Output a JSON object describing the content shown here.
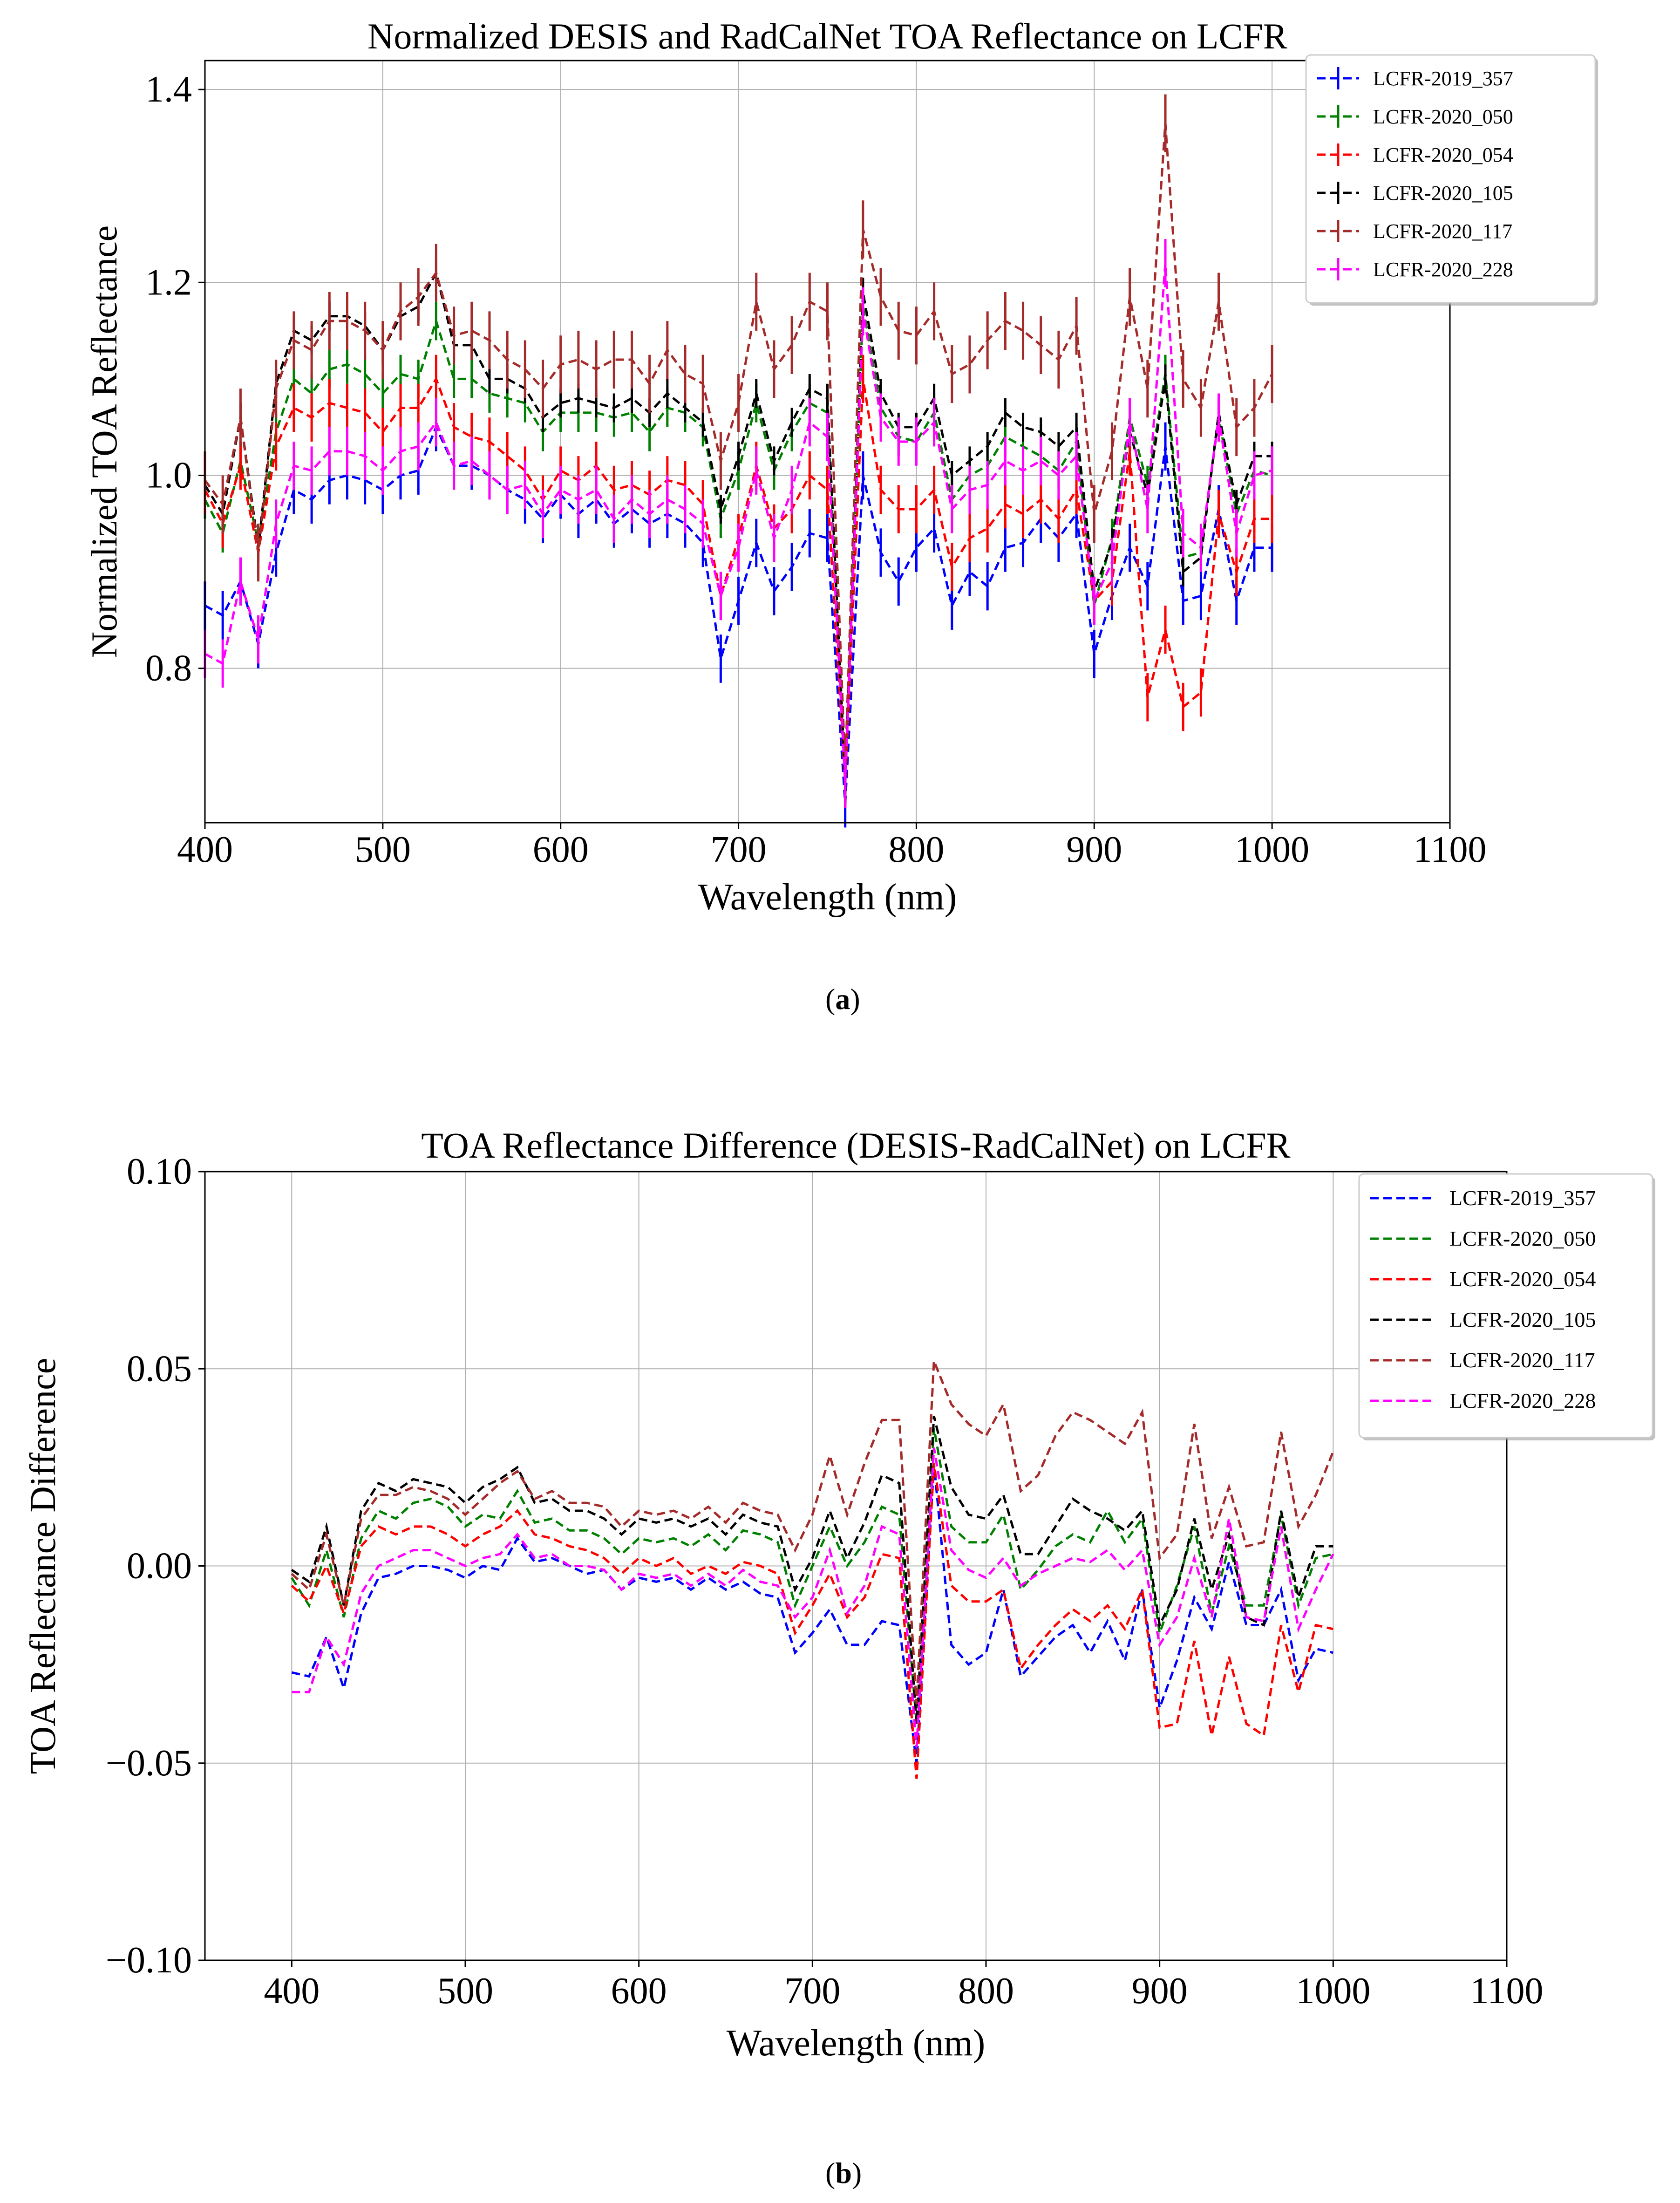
{
  "figure_labels": {
    "a": "a",
    "b": "b"
  },
  "chart_data": [
    {
      "type": "line",
      "title": "Normalized DESIS and RadCalNet TOA Reflectance on LCFR",
      "xlabel": "Wavelength (nm)",
      "ylabel": "Normalized TOA Reflectance",
      "xlim": [
        400,
        1100
      ],
      "ylim": [
        0.64,
        1.43
      ],
      "xticks": [
        400,
        500,
        600,
        700,
        800,
        900,
        1000,
        1100
      ],
      "xtick_labels": [
        "400",
        "500",
        "600",
        "700",
        "800",
        "900",
        "1000",
        "1100"
      ],
      "yticks": [
        0.8,
        1.0,
        1.2,
        1.4
      ],
      "ytick_labels": [
        "0.8",
        "1.0",
        "1.2",
        "1.4"
      ],
      "grid": true,
      "error_bars": true,
      "legend_position": "top-right",
      "x": [
        400,
        410,
        420,
        430,
        440,
        450,
        460,
        470,
        480,
        490,
        500,
        510,
        520,
        530,
        540,
        550,
        560,
        570,
        580,
        590,
        600,
        610,
        620,
        630,
        640,
        650,
        660,
        670,
        680,
        690,
        700,
        710,
        720,
        730,
        740,
        750,
        760,
        770,
        780,
        790,
        800,
        810,
        820,
        830,
        840,
        850,
        860,
        870,
        880,
        890,
        900,
        910,
        920,
        930,
        940,
        950,
        960,
        970,
        980,
        990,
        1000
      ],
      "series": [
        {
          "name": "LCFR-2019_357",
          "color": "#0000ff",
          "err": 0.025,
          "values": [
            0.865,
            0.855,
            0.89,
            0.825,
            0.92,
            0.985,
            0.975,
            0.995,
            1.0,
            0.995,
            0.985,
            1.0,
            1.005,
            1.05,
            1.01,
            1.01,
            1.0,
            0.985,
            0.975,
            0.955,
            0.98,
            0.96,
            0.975,
            0.95,
            0.965,
            0.95,
            0.96,
            0.95,
            0.93,
            0.81,
            0.87,
            0.93,
            0.88,
            0.905,
            0.94,
            0.935,
            0.66,
            1.0,
            0.92,
            0.89,
            0.925,
            0.945,
            0.865,
            0.9,
            0.885,
            0.925,
            0.93,
            0.955,
            0.935,
            0.96,
            0.815,
            0.875,
            0.925,
            0.885,
            1.03,
            0.87,
            0.875,
            0.965,
            0.87,
            0.925,
            0.925
          ]
        },
        {
          "name": "LCFR-2020_050",
          "color": "#008000",
          "err": 0.02,
          "values": [
            0.975,
            0.94,
            1.015,
            0.93,
            1.045,
            1.1,
            1.085,
            1.11,
            1.115,
            1.105,
            1.085,
            1.105,
            1.1,
            1.16,
            1.1,
            1.1,
            1.085,
            1.08,
            1.075,
            1.045,
            1.065,
            1.065,
            1.065,
            1.06,
            1.065,
            1.045,
            1.07,
            1.065,
            1.05,
            0.955,
            1.005,
            1.075,
            1.005,
            1.045,
            1.075,
            1.065,
            0.685,
            1.175,
            1.07,
            1.04,
            1.035,
            1.065,
            0.975,
            1.0,
            1.01,
            1.04,
            1.03,
            1.02,
            1.005,
            1.035,
            0.865,
            0.935,
            1.06,
            0.99,
            1.105,
            0.915,
            0.92,
            1.06,
            0.96,
            1.005,
            1.0
          ]
        },
        {
          "name": "LCFR-2020_054",
          "color": "#ff0000",
          "err": 0.025,
          "values": [
            0.985,
            0.95,
            1.01,
            0.92,
            1.03,
            1.07,
            1.06,
            1.075,
            1.07,
            1.065,
            1.045,
            1.07,
            1.07,
            1.1,
            1.05,
            1.04,
            1.035,
            1.02,
            1.005,
            0.975,
            1.005,
            0.995,
            1.01,
            0.985,
            0.99,
            0.98,
            0.995,
            0.99,
            0.97,
            0.875,
            0.935,
            1.01,
            0.945,
            0.965,
            1.0,
            0.985,
            0.68,
            1.1,
            0.985,
            0.965,
            0.965,
            0.985,
            0.905,
            0.935,
            0.945,
            0.97,
            0.96,
            0.975,
            0.955,
            0.985,
            0.87,
            0.89,
            1.025,
            0.77,
            0.84,
            0.76,
            0.775,
            0.96,
            0.9,
            0.955,
            0.955
          ]
        },
        {
          "name": "LCFR-2020_105",
          "color": "#000000",
          "err": 0.015,
          "values": [
            0.99,
            0.96,
            1.06,
            0.925,
            1.095,
            1.15,
            1.14,
            1.165,
            1.165,
            1.155,
            1.13,
            1.165,
            1.175,
            1.21,
            1.135,
            1.135,
            1.1,
            1.1,
            1.09,
            1.06,
            1.075,
            1.08,
            1.075,
            1.07,
            1.08,
            1.065,
            1.085,
            1.07,
            1.055,
            0.965,
            1.02,
            1.085,
            1.015,
            1.055,
            1.09,
            1.08,
            0.685,
            1.19,
            1.085,
            1.05,
            1.05,
            1.08,
            1.0,
            1.015,
            1.03,
            1.065,
            1.05,
            1.045,
            1.03,
            1.05,
            0.88,
            0.93,
            1.045,
            0.98,
            1.1,
            0.9,
            0.915,
            1.065,
            0.97,
            1.02,
            1.02
          ]
        },
        {
          "name": "LCFR-2020_117",
          "color": "#a52a2a",
          "err": 0.03,
          "values": [
            0.995,
            0.97,
            1.06,
            0.92,
            1.09,
            1.14,
            1.13,
            1.16,
            1.16,
            1.15,
            1.13,
            1.17,
            1.185,
            1.21,
            1.145,
            1.15,
            1.14,
            1.12,
            1.11,
            1.09,
            1.115,
            1.12,
            1.11,
            1.12,
            1.12,
            1.095,
            1.13,
            1.105,
            1.095,
            1.015,
            1.075,
            1.18,
            1.11,
            1.135,
            1.18,
            1.17,
            0.695,
            1.255,
            1.185,
            1.15,
            1.145,
            1.17,
            1.105,
            1.115,
            1.14,
            1.16,
            1.15,
            1.135,
            1.12,
            1.155,
            0.96,
            1.025,
            1.185,
            1.09,
            1.365,
            1.1,
            1.07,
            1.18,
            1.05,
            1.07,
            1.105
          ]
        },
        {
          "name": "LCFR-2020_228",
          "color": "#ff00ff",
          "err": 0.025,
          "values": [
            0.815,
            0.805,
            0.89,
            0.83,
            0.95,
            1.01,
            1.005,
            1.025,
            1.025,
            1.02,
            1.005,
            1.025,
            1.03,
            1.055,
            1.01,
            1.015,
            1.0,
            0.985,
            0.99,
            0.96,
            0.985,
            0.975,
            0.985,
            0.955,
            0.975,
            0.96,
            0.975,
            0.965,
            0.95,
            0.875,
            0.925,
            1.005,
            0.935,
            0.985,
            1.055,
            1.04,
            0.68,
            1.17,
            1.06,
            1.035,
            1.035,
            1.055,
            0.965,
            0.985,
            0.99,
            1.015,
            1.005,
            1.015,
            1.0,
            1.02,
            0.87,
            0.91,
            1.055,
            0.965,
            1.22,
            0.94,
            0.925,
            1.06,
            0.94,
            1.0,
            1.005
          ]
        }
      ]
    },
    {
      "type": "line",
      "title": "TOA Reflectance Difference (DESIS-RadCalNet) on LCFR",
      "xlabel": "Wavelength (nm)",
      "ylabel": "TOA Reflectance Difference",
      "xlim": [
        350,
        1100
      ],
      "ylim": [
        -0.1,
        0.1
      ],
      "xticks": [
        400,
        500,
        600,
        700,
        800,
        900,
        1000,
        1100
      ],
      "xtick_labels": [
        "400",
        "500",
        "600",
        "700",
        "800",
        "900",
        "1000",
        "1100"
      ],
      "yticks": [
        -0.1,
        -0.05,
        0.0,
        0.05,
        0.1
      ],
      "ytick_labels": [
        "−0.10",
        "−0.05",
        "0.00",
        "0.05",
        "0.10"
      ],
      "grid": true,
      "error_bars": false,
      "legend_position": "top-right",
      "x": [
        400,
        410,
        420,
        430,
        440,
        450,
        460,
        470,
        480,
        490,
        500,
        510,
        520,
        530,
        540,
        550,
        560,
        570,
        580,
        590,
        600,
        610,
        620,
        630,
        640,
        650,
        660,
        670,
        680,
        690,
        700,
        710,
        720,
        730,
        740,
        750,
        760,
        770,
        780,
        790,
        800,
        810,
        820,
        830,
        840,
        850,
        860,
        870,
        880,
        890,
        900,
        910,
        920,
        930,
        940,
        950,
        960,
        970,
        980,
        990,
        1000
      ],
      "series": [
        {
          "name": "LCFR-2019_357",
          "color": "#0000ff",
          "values": [
            -0.027,
            -0.028,
            -0.018,
            -0.031,
            -0.012,
            -0.003,
            -0.002,
            0.0,
            0.0,
            -0.001,
            -0.003,
            0.0,
            -0.001,
            0.007,
            0.001,
            0.002,
            0.0,
            -0.002,
            -0.001,
            -0.006,
            -0.003,
            -0.004,
            -0.003,
            -0.006,
            -0.003,
            -0.006,
            -0.004,
            -0.007,
            -0.008,
            -0.022,
            -0.017,
            -0.011,
            -0.02,
            -0.02,
            -0.014,
            -0.015,
            -0.05,
            0.026,
            -0.02,
            -0.025,
            -0.022,
            -0.006,
            -0.028,
            -0.023,
            -0.018,
            -0.015,
            -0.022,
            -0.014,
            -0.024,
            -0.006,
            -0.036,
            -0.024,
            -0.008,
            -0.016,
            0.001,
            -0.015,
            -0.015,
            -0.006,
            -0.029,
            -0.021,
            -0.022
          ]
        },
        {
          "name": "LCFR-2020_050",
          "color": "#008000",
          "values": [
            -0.003,
            -0.01,
            0.004,
            -0.013,
            0.007,
            0.014,
            0.012,
            0.016,
            0.017,
            0.015,
            0.01,
            0.013,
            0.012,
            0.019,
            0.011,
            0.012,
            0.009,
            0.009,
            0.007,
            0.003,
            0.007,
            0.006,
            0.007,
            0.005,
            0.008,
            0.004,
            0.009,
            0.008,
            0.006,
            -0.01,
            0.0,
            0.01,
            0.0,
            0.006,
            0.015,
            0.013,
            -0.04,
            0.035,
            0.01,
            0.006,
            0.006,
            0.013,
            -0.006,
            -0.001,
            0.005,
            0.008,
            0.006,
            0.014,
            0.006,
            0.012,
            -0.017,
            -0.005,
            0.01,
            -0.012,
            0.005,
            -0.01,
            -0.01,
            0.013,
            -0.01,
            0.002,
            0.003
          ]
        },
        {
          "name": "LCFR-2020_054",
          "color": "#ff0000",
          "values": [
            -0.005,
            -0.009,
            0.0,
            -0.012,
            0.005,
            0.01,
            0.008,
            0.01,
            0.01,
            0.008,
            0.005,
            0.008,
            0.01,
            0.014,
            0.008,
            0.007,
            0.005,
            0.004,
            0.002,
            -0.002,
            0.002,
            0.0,
            0.002,
            -0.002,
            0.0,
            -0.002,
            0.001,
            0.0,
            -0.002,
            -0.017,
            -0.01,
            -0.002,
            -0.013,
            -0.008,
            0.003,
            0.002,
            -0.054,
            0.026,
            -0.005,
            -0.009,
            -0.009,
            -0.006,
            -0.026,
            -0.02,
            -0.015,
            -0.011,
            -0.014,
            -0.01,
            -0.016,
            -0.006,
            -0.041,
            -0.04,
            -0.019,
            -0.043,
            -0.023,
            -0.04,
            -0.043,
            -0.015,
            -0.032,
            -0.015,
            -0.016
          ]
        },
        {
          "name": "LCFR-2020_105",
          "color": "#000000",
          "values": [
            -0.001,
            -0.004,
            0.01,
            -0.01,
            0.014,
            0.021,
            0.019,
            0.022,
            0.021,
            0.02,
            0.016,
            0.02,
            0.022,
            0.025,
            0.016,
            0.017,
            0.014,
            0.014,
            0.012,
            0.008,
            0.012,
            0.011,
            0.012,
            0.01,
            0.012,
            0.008,
            0.013,
            0.011,
            0.01,
            -0.006,
            0.002,
            0.014,
            0.002,
            0.011,
            0.023,
            0.021,
            -0.04,
            0.038,
            0.02,
            0.013,
            0.012,
            0.018,
            0.003,
            0.003,
            0.01,
            0.017,
            0.014,
            0.012,
            0.009,
            0.014,
            -0.015,
            -0.006,
            0.012,
            -0.006,
            0.008,
            -0.013,
            -0.015,
            0.014,
            -0.008,
            0.005,
            0.005
          ]
        },
        {
          "name": "LCFR-2020_117",
          "color": "#a52a2a",
          "values": [
            -0.002,
            -0.006,
            0.008,
            -0.01,
            0.012,
            0.018,
            0.018,
            0.02,
            0.019,
            0.017,
            0.013,
            0.017,
            0.021,
            0.024,
            0.017,
            0.019,
            0.016,
            0.016,
            0.015,
            0.01,
            0.014,
            0.013,
            0.014,
            0.012,
            0.015,
            0.011,
            0.016,
            0.014,
            0.013,
            0.004,
            0.013,
            0.028,
            0.013,
            0.026,
            0.037,
            0.037,
            -0.035,
            0.052,
            0.041,
            0.036,
            0.033,
            0.041,
            0.019,
            0.023,
            0.033,
            0.039,
            0.037,
            0.034,
            0.031,
            0.039,
            0.002,
            0.008,
            0.036,
            0.007,
            0.02,
            0.005,
            0.006,
            0.034,
            0.01,
            0.018,
            0.029
          ]
        },
        {
          "name": "LCFR-2020_228",
          "color": "#ff00ff",
          "values": [
            -0.032,
            -0.032,
            -0.018,
            -0.025,
            -0.007,
            0.0,
            0.002,
            0.004,
            0.004,
            0.002,
            0.0,
            0.002,
            0.003,
            0.008,
            0.002,
            0.003,
            0.0,
            0.0,
            -0.001,
            -0.006,
            -0.002,
            -0.003,
            -0.002,
            -0.005,
            -0.002,
            -0.005,
            -0.001,
            -0.004,
            -0.005,
            -0.013,
            -0.008,
            0.004,
            -0.012,
            -0.005,
            0.01,
            0.008,
            -0.046,
            0.03,
            0.004,
            -0.001,
            -0.003,
            0.002,
            -0.005,
            -0.002,
            0.0,
            0.002,
            0.001,
            0.004,
            -0.001,
            0.004,
            -0.02,
            -0.013,
            0.002,
            -0.013,
            0.012,
            -0.013,
            -0.014,
            0.01,
            -0.016,
            -0.006,
            0.003
          ]
        }
      ]
    }
  ]
}
